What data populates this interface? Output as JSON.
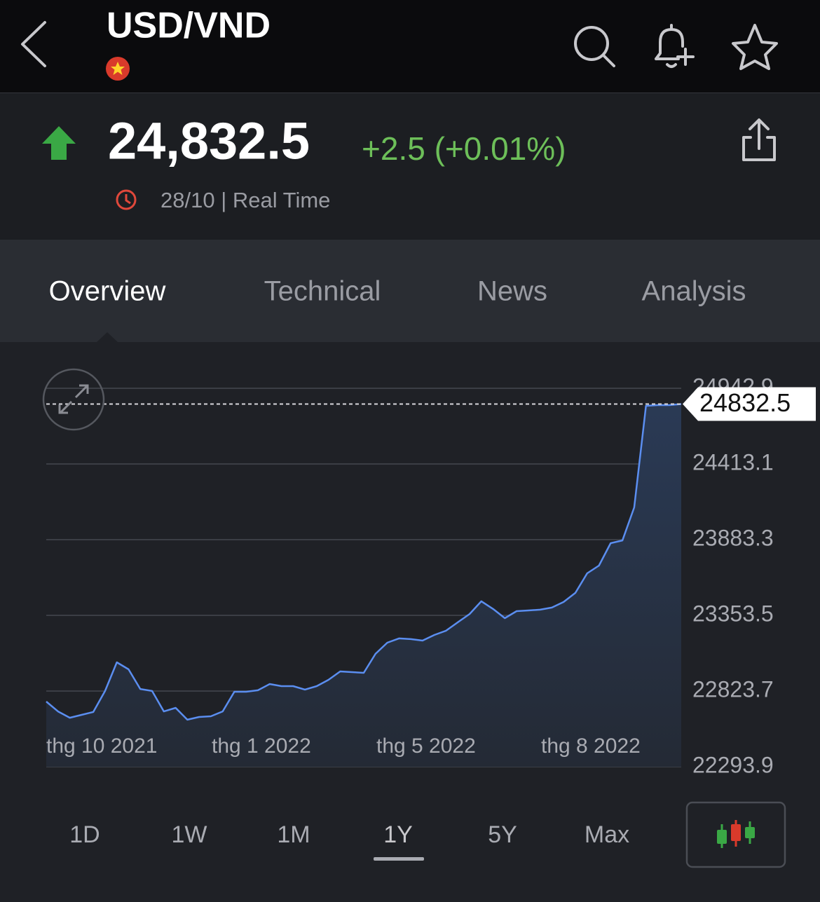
{
  "header": {
    "title": "USD/VND"
  },
  "quote": {
    "price": "24,832.5",
    "change": "+2.5 (+0.01%)",
    "timestamp": "28/10 | Real Time"
  },
  "tabs": [
    "Overview",
    "Technical",
    "News",
    "Analysis"
  ],
  "ranges": [
    "1D",
    "1W",
    "1M",
    "1Y",
    "5Y",
    "Max"
  ],
  "chart_data": {
    "type": "line",
    "x_labels": [
      "thg 10 2021",
      "thg 1 2022",
      "thg 5 2022",
      "thg 8 2022"
    ],
    "values": [
      22750,
      22681,
      22637,
      22657,
      22677,
      22824,
      23025,
      22976,
      22838,
      22824,
      22681,
      22706,
      22623,
      22642,
      22647,
      22681,
      22819,
      22819,
      22829,
      22873,
      22858,
      22858,
      22834,
      22858,
      22902,
      22961,
      22956,
      22951,
      23084,
      23162,
      23192,
      23187,
      23177,
      23216,
      23246,
      23305,
      23363,
      23452,
      23398,
      23334,
      23383,
      23388,
      23393,
      23408,
      23447,
      23511,
      23648,
      23702,
      23859,
      23878,
      24109,
      24820,
      24825,
      24825,
      24832.5
    ],
    "ylim": [
      22293.9,
      24942.9
    ],
    "yticks": [
      22293.9,
      22823.7,
      23353.5,
      23883.3,
      24413.1,
      24942.9
    ],
    "color": "#5b8ef0",
    "grid": true
  }
}
